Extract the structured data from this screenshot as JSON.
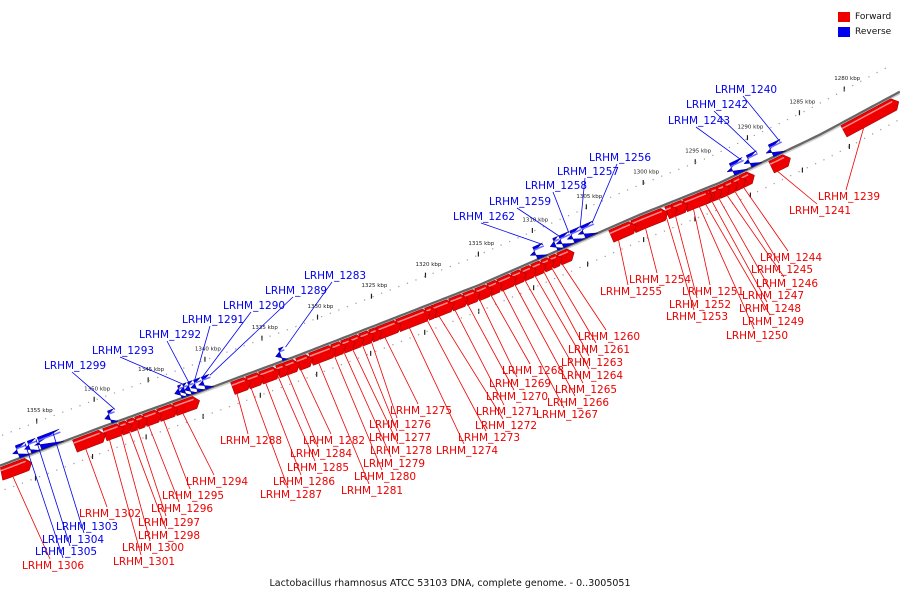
{
  "caption": "Lactobacillus rhamnosus ATCC 53103 DNA, complete genome. - 0..3005051",
  "colors": {
    "forward": "#ee0000",
    "reverse": "#0000ee",
    "backbone": "#888888"
  },
  "legend": [
    {
      "label": "Forward",
      "color": "#ee0000"
    },
    {
      "label": "Reverse",
      "color": "#0000ee"
    }
  ],
  "kbp_ticks": [
    {
      "label": "1280 kbp",
      "kbp": 1280
    },
    {
      "label": "1285 kbp",
      "kbp": 1285
    },
    {
      "label": "1290 kbp",
      "kbp": 1290
    },
    {
      "label": "1295 kbp",
      "kbp": 1295
    },
    {
      "label": "1300 kbp",
      "kbp": 1300
    },
    {
      "label": "1305 kbp",
      "kbp": 1305
    },
    {
      "label": "1310 kbp",
      "kbp": 1310
    },
    {
      "label": "1315 kbp",
      "kbp": 1315
    },
    {
      "label": "1320 kbp",
      "kbp": 1320
    },
    {
      "label": "1325 kbp",
      "kbp": 1325
    },
    {
      "label": "1330 kbp",
      "kbp": 1330
    },
    {
      "label": "1335 kbp",
      "kbp": 1335
    },
    {
      "label": "1340 kbp",
      "kbp": 1340
    },
    {
      "label": "1345 kbp",
      "kbp": 1345
    },
    {
      "label": "1350 kbp",
      "kbp": 1350
    },
    {
      "label": "1355 kbp",
      "kbp": 1355
    }
  ],
  "genes": [
    {
      "name": "LRHM_1239",
      "strand": "forward"
    },
    {
      "name": "LRHM_1240",
      "strand": "reverse"
    },
    {
      "name": "LRHM_1241",
      "strand": "forward"
    },
    {
      "name": "LRHM_1242",
      "strand": "reverse"
    },
    {
      "name": "LRHM_1243",
      "strand": "reverse"
    },
    {
      "name": "LRHM_1244",
      "strand": "forward"
    },
    {
      "name": "LRHM_1245",
      "strand": "forward"
    },
    {
      "name": "LRHM_1246",
      "strand": "forward"
    },
    {
      "name": "LRHM_1247",
      "strand": "forward"
    },
    {
      "name": "LRHM_1248",
      "strand": "forward"
    },
    {
      "name": "LRHM_1249",
      "strand": "forward"
    },
    {
      "name": "LRHM_1250",
      "strand": "forward"
    },
    {
      "name": "LRHM_1251",
      "strand": "forward"
    },
    {
      "name": "LRHM_1252",
      "strand": "forward"
    },
    {
      "name": "LRHM_1253",
      "strand": "forward"
    },
    {
      "name": "LRHM_1254",
      "strand": "forward"
    },
    {
      "name": "LRHM_1255",
      "strand": "forward"
    },
    {
      "name": "LRHM_1256",
      "strand": "reverse"
    },
    {
      "name": "LRHM_1257",
      "strand": "reverse"
    },
    {
      "name": "LRHM_1258",
      "strand": "reverse"
    },
    {
      "name": "LRHM_1259",
      "strand": "reverse"
    },
    {
      "name": "LRHM_1260",
      "strand": "forward"
    },
    {
      "name": "LRHM_1261",
      "strand": "forward"
    },
    {
      "name": "LRHM_1262",
      "strand": "reverse"
    },
    {
      "name": "LRHM_1263",
      "strand": "forward"
    },
    {
      "name": "LRHM_1264",
      "strand": "forward"
    },
    {
      "name": "LRHM_1265",
      "strand": "forward"
    },
    {
      "name": "LRHM_1266",
      "strand": "forward"
    },
    {
      "name": "LRHM_1267",
      "strand": "forward"
    },
    {
      "name": "LRHM_1268",
      "strand": "forward"
    },
    {
      "name": "LRHM_1269",
      "strand": "forward"
    },
    {
      "name": "LRHM_1270",
      "strand": "forward"
    },
    {
      "name": "LRHM_1271",
      "strand": "forward"
    },
    {
      "name": "LRHM_1272",
      "strand": "forward"
    },
    {
      "name": "LRHM_1273",
      "strand": "forward"
    },
    {
      "name": "LRHM_1274",
      "strand": "forward"
    },
    {
      "name": "LRHM_1275",
      "strand": "forward"
    },
    {
      "name": "LRHM_1276",
      "strand": "forward"
    },
    {
      "name": "LRHM_1277",
      "strand": "forward"
    },
    {
      "name": "LRHM_1278",
      "strand": "forward"
    },
    {
      "name": "LRHM_1279",
      "strand": "forward"
    },
    {
      "name": "LRHM_1280",
      "strand": "forward"
    },
    {
      "name": "LRHM_1281",
      "strand": "forward"
    },
    {
      "name": "LRHM_1282",
      "strand": "forward"
    },
    {
      "name": "LRHM_1283",
      "strand": "reverse"
    },
    {
      "name": "LRHM_1284",
      "strand": "forward"
    },
    {
      "name": "LRHM_1285",
      "strand": "forward"
    },
    {
      "name": "LRHM_1286",
      "strand": "forward"
    },
    {
      "name": "LRHM_1287",
      "strand": "forward"
    },
    {
      "name": "LRHM_1288",
      "strand": "forward"
    },
    {
      "name": "LRHM_1289",
      "strand": "reverse"
    },
    {
      "name": "LRHM_1290",
      "strand": "reverse"
    },
    {
      "name": "LRHM_1291",
      "strand": "reverse"
    },
    {
      "name": "LRHM_1292",
      "strand": "reverse"
    },
    {
      "name": "LRHM_1293",
      "strand": "reverse"
    },
    {
      "name": "LRHM_1294",
      "strand": "forward"
    },
    {
      "name": "LRHM_1295",
      "strand": "forward"
    },
    {
      "name": "LRHM_1296",
      "strand": "forward"
    },
    {
      "name": "LRHM_1297",
      "strand": "forward"
    },
    {
      "name": "LRHM_1298",
      "strand": "forward"
    },
    {
      "name": "LRHM_1299",
      "strand": "reverse"
    },
    {
      "name": "LRHM_1300",
      "strand": "forward"
    },
    {
      "name": "LRHM_1301",
      "strand": "forward"
    },
    {
      "name": "LRHM_1302",
      "strand": "forward"
    },
    {
      "name": "LRHM_1303",
      "strand": "reverse"
    },
    {
      "name": "LRHM_1304",
      "strand": "reverse"
    },
    {
      "name": "LRHM_1305",
      "strand": "reverse"
    },
    {
      "name": "LRHM_1306",
      "strand": "forward"
    }
  ]
}
